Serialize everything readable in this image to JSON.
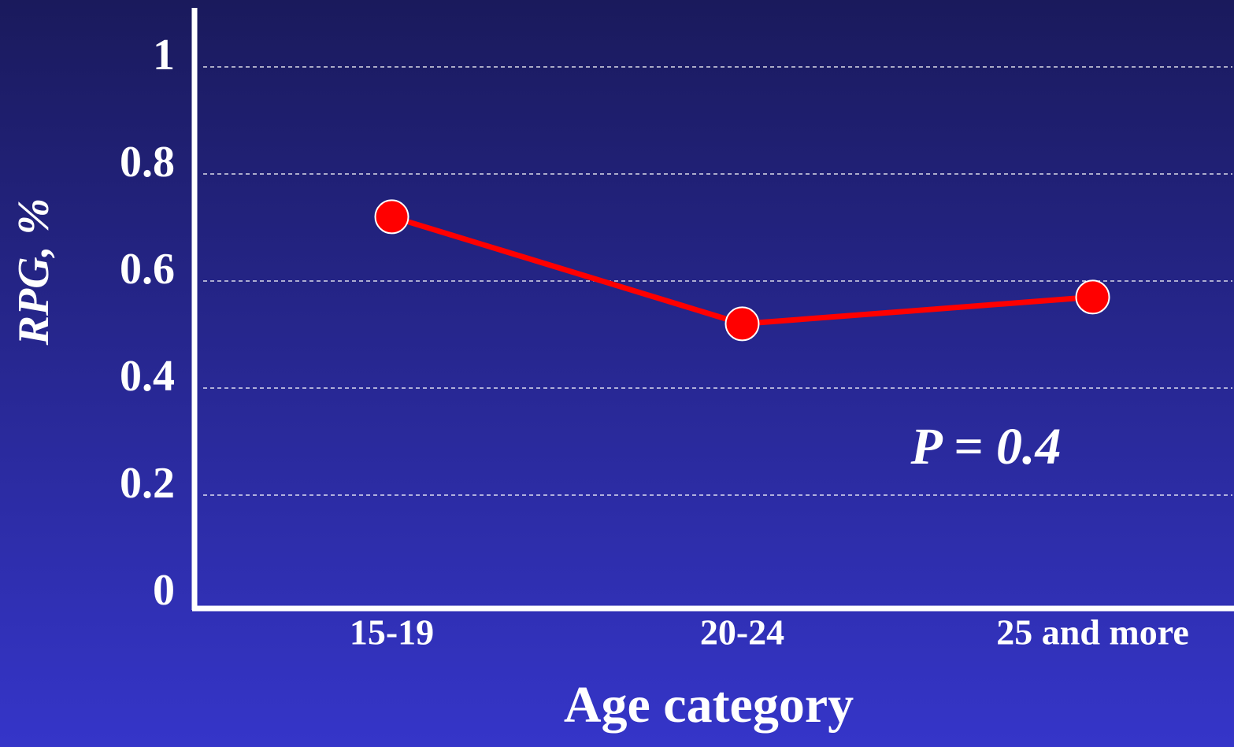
{
  "chart_data": {
    "type": "line",
    "y_label": "RPG, %",
    "x_label": "Age category",
    "annotation": "P = 0.4",
    "categories": [
      "15-19",
      "20-24",
      "25 and more"
    ],
    "series": [
      {
        "name": "RPG",
        "color": "#ff0000",
        "values": [
          0.72,
          0.52,
          0.57
        ]
      }
    ],
    "ylim": [
      0,
      1.1
    ],
    "yticks": [
      0,
      0.2,
      0.4,
      0.6,
      0.8,
      1
    ],
    "grid": true
  }
}
